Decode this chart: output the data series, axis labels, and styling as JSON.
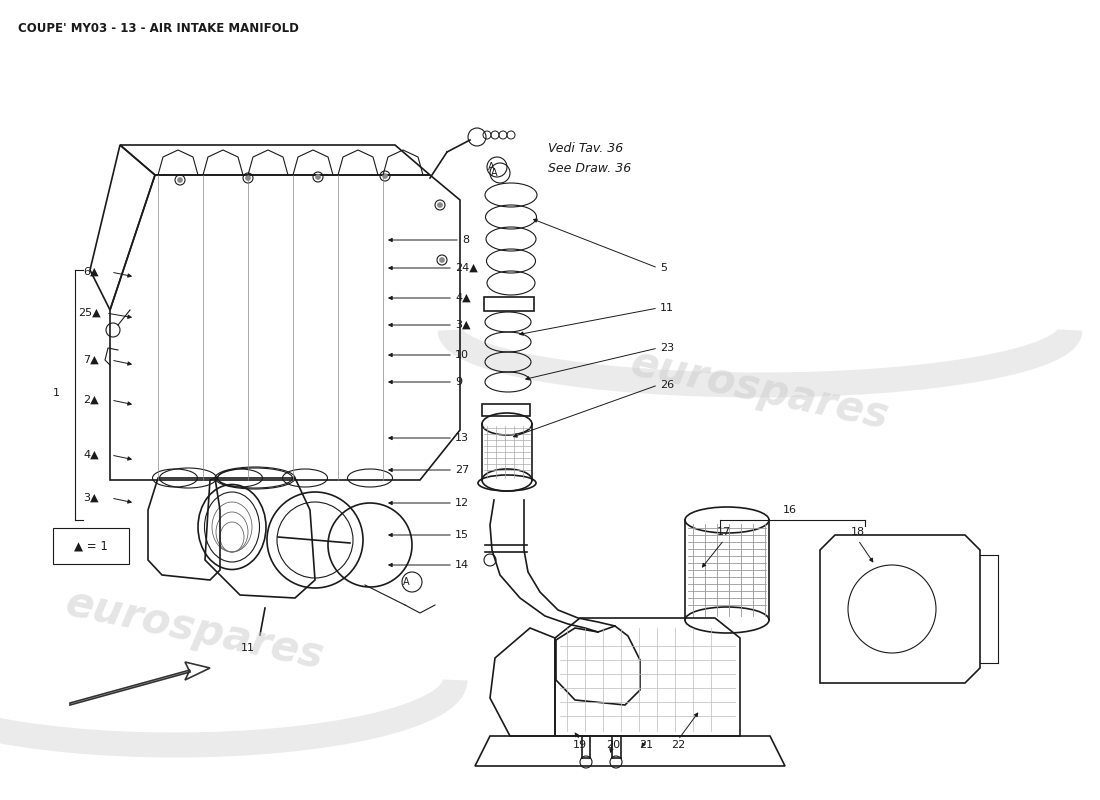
{
  "title": "COUPE' MY03 - 13 - AIR INTAKE MANIFOLD",
  "bg_color": "#ffffff",
  "line_color": "#1a1a1a",
  "watermark_text": "eurospares",
  "watermark_color": "#cccccc",
  "note_text1": "Vedi Tav. 36",
  "note_text2": "See Draw. 36",
  "legend_text": "▲ = 1"
}
